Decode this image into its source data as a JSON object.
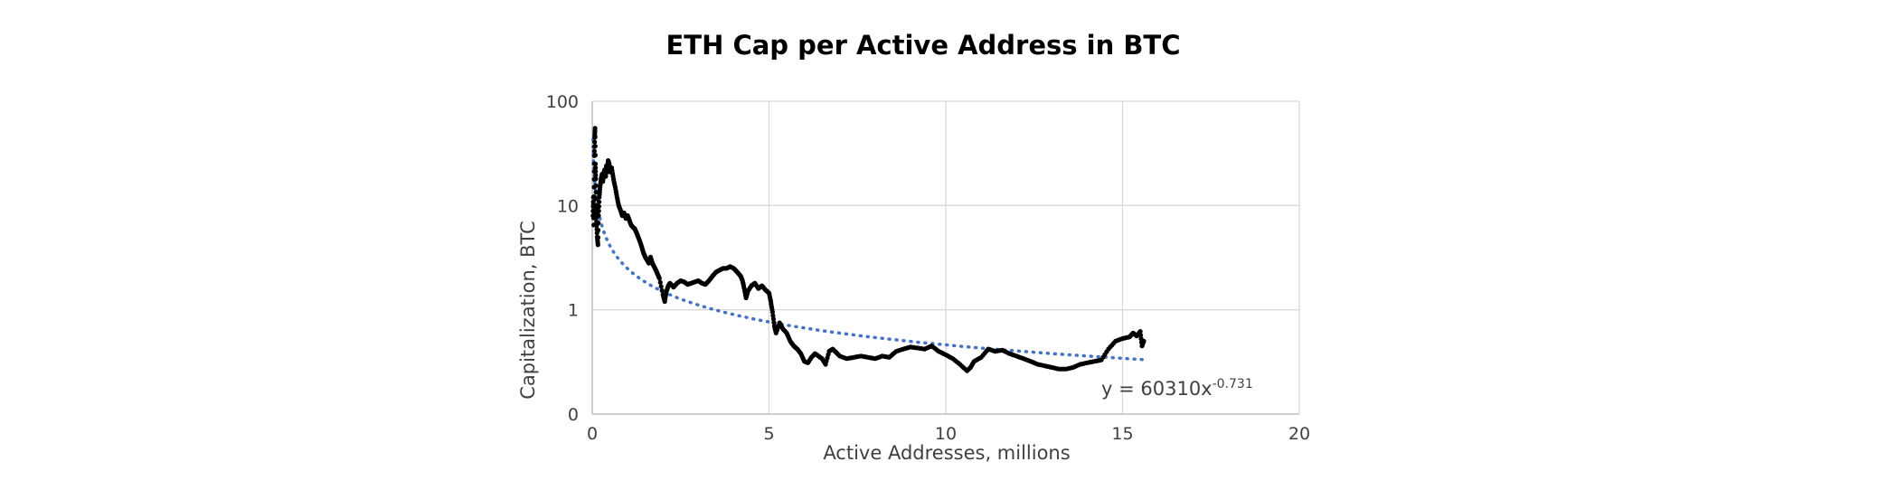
{
  "chart_data": {
    "type": "scatter",
    "title": "ETH Cap per Active Address in BTC",
    "xlabel": "Active Addresses, millions",
    "ylabel": "Capitalization, BTC",
    "xlim": [
      0,
      20
    ],
    "ylim": [
      0.1,
      100
    ],
    "yscale": "log",
    "x_ticks": [
      0,
      5,
      10,
      15,
      20
    ],
    "y_ticks": [
      {
        "value": 0.1,
        "label": "0"
      },
      {
        "value": 1,
        "label": "1"
      },
      {
        "value": 10,
        "label": "10"
      },
      {
        "value": 100,
        "label": "100"
      }
    ],
    "grid": true,
    "legend": "none",
    "colors": {
      "points": "#000000",
      "trendline": "#4472C4",
      "grid": "#d9d9d9",
      "axis": "#bfbfbf"
    },
    "series": [
      {
        "points": [
          [
            0.02,
            8
          ],
          [
            0.03,
            12
          ],
          [
            0.04,
            6.5
          ],
          [
            0.05,
            15
          ],
          [
            0.06,
            30
          ],
          [
            0.07,
            45
          ],
          [
            0.08,
            55
          ],
          [
            0.09,
            25
          ],
          [
            0.1,
            18
          ],
          [
            0.11,
            10
          ],
          [
            0.12,
            7
          ],
          [
            0.14,
            5
          ],
          [
            0.16,
            4.2
          ],
          [
            0.18,
            8
          ],
          [
            0.2,
            12
          ],
          [
            0.22,
            15
          ],
          [
            0.25,
            18
          ],
          [
            0.28,
            20
          ],
          [
            0.3,
            17
          ],
          [
            0.32,
            20
          ],
          [
            0.35,
            22
          ],
          [
            0.38,
            19
          ],
          [
            0.4,
            24
          ],
          [
            0.42,
            22
          ],
          [
            0.45,
            27
          ],
          [
            0.48,
            25
          ],
          [
            0.5,
            21
          ],
          [
            0.55,
            23
          ],
          [
            0.6,
            18
          ],
          [
            0.65,
            15
          ],
          [
            0.7,
            12
          ],
          [
            0.75,
            10
          ],
          [
            0.8,
            9
          ],
          [
            0.85,
            8
          ],
          [
            0.9,
            8.5
          ],
          [
            0.95,
            7.5
          ],
          [
            1.0,
            8
          ],
          [
            1.05,
            7.2
          ],
          [
            1.1,
            6.5
          ],
          [
            1.15,
            6.2
          ],
          [
            1.2,
            6
          ],
          [
            1.25,
            5.5
          ],
          [
            1.3,
            5
          ],
          [
            1.35,
            4.5
          ],
          [
            1.4,
            4
          ],
          [
            1.45,
            3.5
          ],
          [
            1.5,
            3.2
          ],
          [
            1.55,
            3
          ],
          [
            1.6,
            2.8
          ],
          [
            1.65,
            3.2
          ],
          [
            1.7,
            2.8
          ],
          [
            1.75,
            2.6
          ],
          [
            1.8,
            2.4
          ],
          [
            1.85,
            2.2
          ],
          [
            1.9,
            2
          ],
          [
            2.0,
            1.4
          ],
          [
            2.05,
            1.2
          ],
          [
            2.1,
            1.5
          ],
          [
            2.15,
            1.7
          ],
          [
            2.2,
            1.8
          ],
          [
            2.3,
            1.65
          ],
          [
            2.4,
            1.8
          ],
          [
            2.5,
            1.9
          ],
          [
            2.6,
            1.85
          ],
          [
            2.7,
            1.75
          ],
          [
            2.8,
            1.8
          ],
          [
            2.9,
            1.85
          ],
          [
            3.0,
            1.9
          ],
          [
            3.1,
            1.8
          ],
          [
            3.2,
            1.75
          ],
          [
            3.3,
            1.9
          ],
          [
            3.4,
            2.1
          ],
          [
            3.5,
            2.3
          ],
          [
            3.6,
            2.4
          ],
          [
            3.7,
            2.5
          ],
          [
            3.8,
            2.5
          ],
          [
            3.9,
            2.6
          ],
          [
            4.0,
            2.5
          ],
          [
            4.1,
            2.3
          ],
          [
            4.2,
            2.1
          ],
          [
            4.25,
            1.9
          ],
          [
            4.3,
            1.6
          ],
          [
            4.35,
            1.3
          ],
          [
            4.4,
            1.5
          ],
          [
            4.5,
            1.7
          ],
          [
            4.6,
            1.8
          ],
          [
            4.7,
            1.6
          ],
          [
            4.8,
            1.7
          ],
          [
            4.9,
            1.55
          ],
          [
            5.0,
            1.45
          ],
          [
            5.05,
            1.2
          ],
          [
            5.1,
            0.95
          ],
          [
            5.15,
            0.7
          ],
          [
            5.2,
            0.6
          ],
          [
            5.3,
            0.75
          ],
          [
            5.4,
            0.65
          ],
          [
            5.5,
            0.6
          ],
          [
            5.6,
            0.5
          ],
          [
            5.7,
            0.45
          ],
          [
            5.8,
            0.42
          ],
          [
            5.9,
            0.38
          ],
          [
            6.0,
            0.32
          ],
          [
            6.1,
            0.31
          ],
          [
            6.2,
            0.35
          ],
          [
            6.3,
            0.38
          ],
          [
            6.4,
            0.36
          ],
          [
            6.5,
            0.34
          ],
          [
            6.6,
            0.3
          ],
          [
            6.7,
            0.4
          ],
          [
            6.8,
            0.42
          ],
          [
            6.9,
            0.39
          ],
          [
            7.0,
            0.36
          ],
          [
            7.2,
            0.34
          ],
          [
            7.4,
            0.35
          ],
          [
            7.6,
            0.36
          ],
          [
            7.8,
            0.35
          ],
          [
            8.0,
            0.34
          ],
          [
            8.2,
            0.36
          ],
          [
            8.4,
            0.35
          ],
          [
            8.6,
            0.4
          ],
          [
            8.8,
            0.42
          ],
          [
            9.0,
            0.44
          ],
          [
            9.2,
            0.43
          ],
          [
            9.4,
            0.42
          ],
          [
            9.6,
            0.45
          ],
          [
            9.8,
            0.4
          ],
          [
            10.0,
            0.37
          ],
          [
            10.2,
            0.34
          ],
          [
            10.4,
            0.3
          ],
          [
            10.6,
            0.26
          ],
          [
            10.7,
            0.28
          ],
          [
            10.8,
            0.32
          ],
          [
            11.0,
            0.35
          ],
          [
            11.2,
            0.42
          ],
          [
            11.4,
            0.4
          ],
          [
            11.6,
            0.41
          ],
          [
            11.8,
            0.38
          ],
          [
            12.0,
            0.36
          ],
          [
            12.2,
            0.34
          ],
          [
            12.4,
            0.32
          ],
          [
            12.6,
            0.3
          ],
          [
            12.8,
            0.29
          ],
          [
            13.0,
            0.28
          ],
          [
            13.2,
            0.27
          ],
          [
            13.4,
            0.27
          ],
          [
            13.6,
            0.28
          ],
          [
            13.8,
            0.3
          ],
          [
            14.0,
            0.31
          ],
          [
            14.2,
            0.32
          ],
          [
            14.4,
            0.33
          ],
          [
            14.6,
            0.42
          ],
          [
            14.8,
            0.5
          ],
          [
            15.0,
            0.53
          ],
          [
            15.2,
            0.55
          ],
          [
            15.3,
            0.6
          ],
          [
            15.4,
            0.56
          ],
          [
            15.5,
            0.62
          ],
          [
            15.55,
            0.45
          ],
          [
            15.6,
            0.5
          ]
        ]
      }
    ],
    "trendline": {
      "type": "power",
      "equation_prefix": "y = 60310x",
      "equation_exponent": "-0.731",
      "coefficient": 60310,
      "exponent": -0.731,
      "x_start": 0.02,
      "x_end": 15.6
    }
  }
}
